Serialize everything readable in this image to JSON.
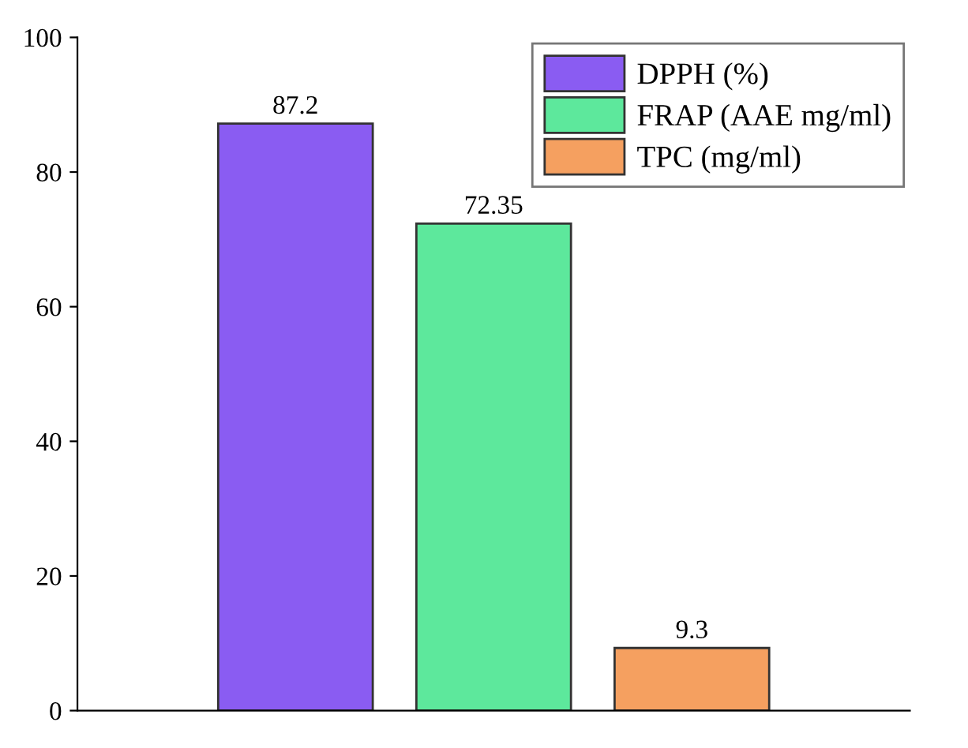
{
  "chart_data": {
    "type": "bar",
    "categories": [
      null,
      null,
      null
    ],
    "series": [
      {
        "name": "DPPH (%)",
        "color": "#8a5cf2",
        "values": [
          87.2,
          null,
          null
        ]
      },
      {
        "name": "FRAP (AAE mg/ml)",
        "color": "#5de89c",
        "values": [
          null,
          72.35,
          null
        ]
      },
      {
        "name": "TPC (mg/ml)",
        "color": "#f5a060",
        "values": [
          null,
          null,
          9.3
        ]
      }
    ],
    "ylim": [
      0,
      100
    ],
    "yticks": [
      0,
      20,
      40,
      60,
      80,
      100
    ],
    "data_labels": true,
    "legend": "top right",
    "grid": false
  }
}
